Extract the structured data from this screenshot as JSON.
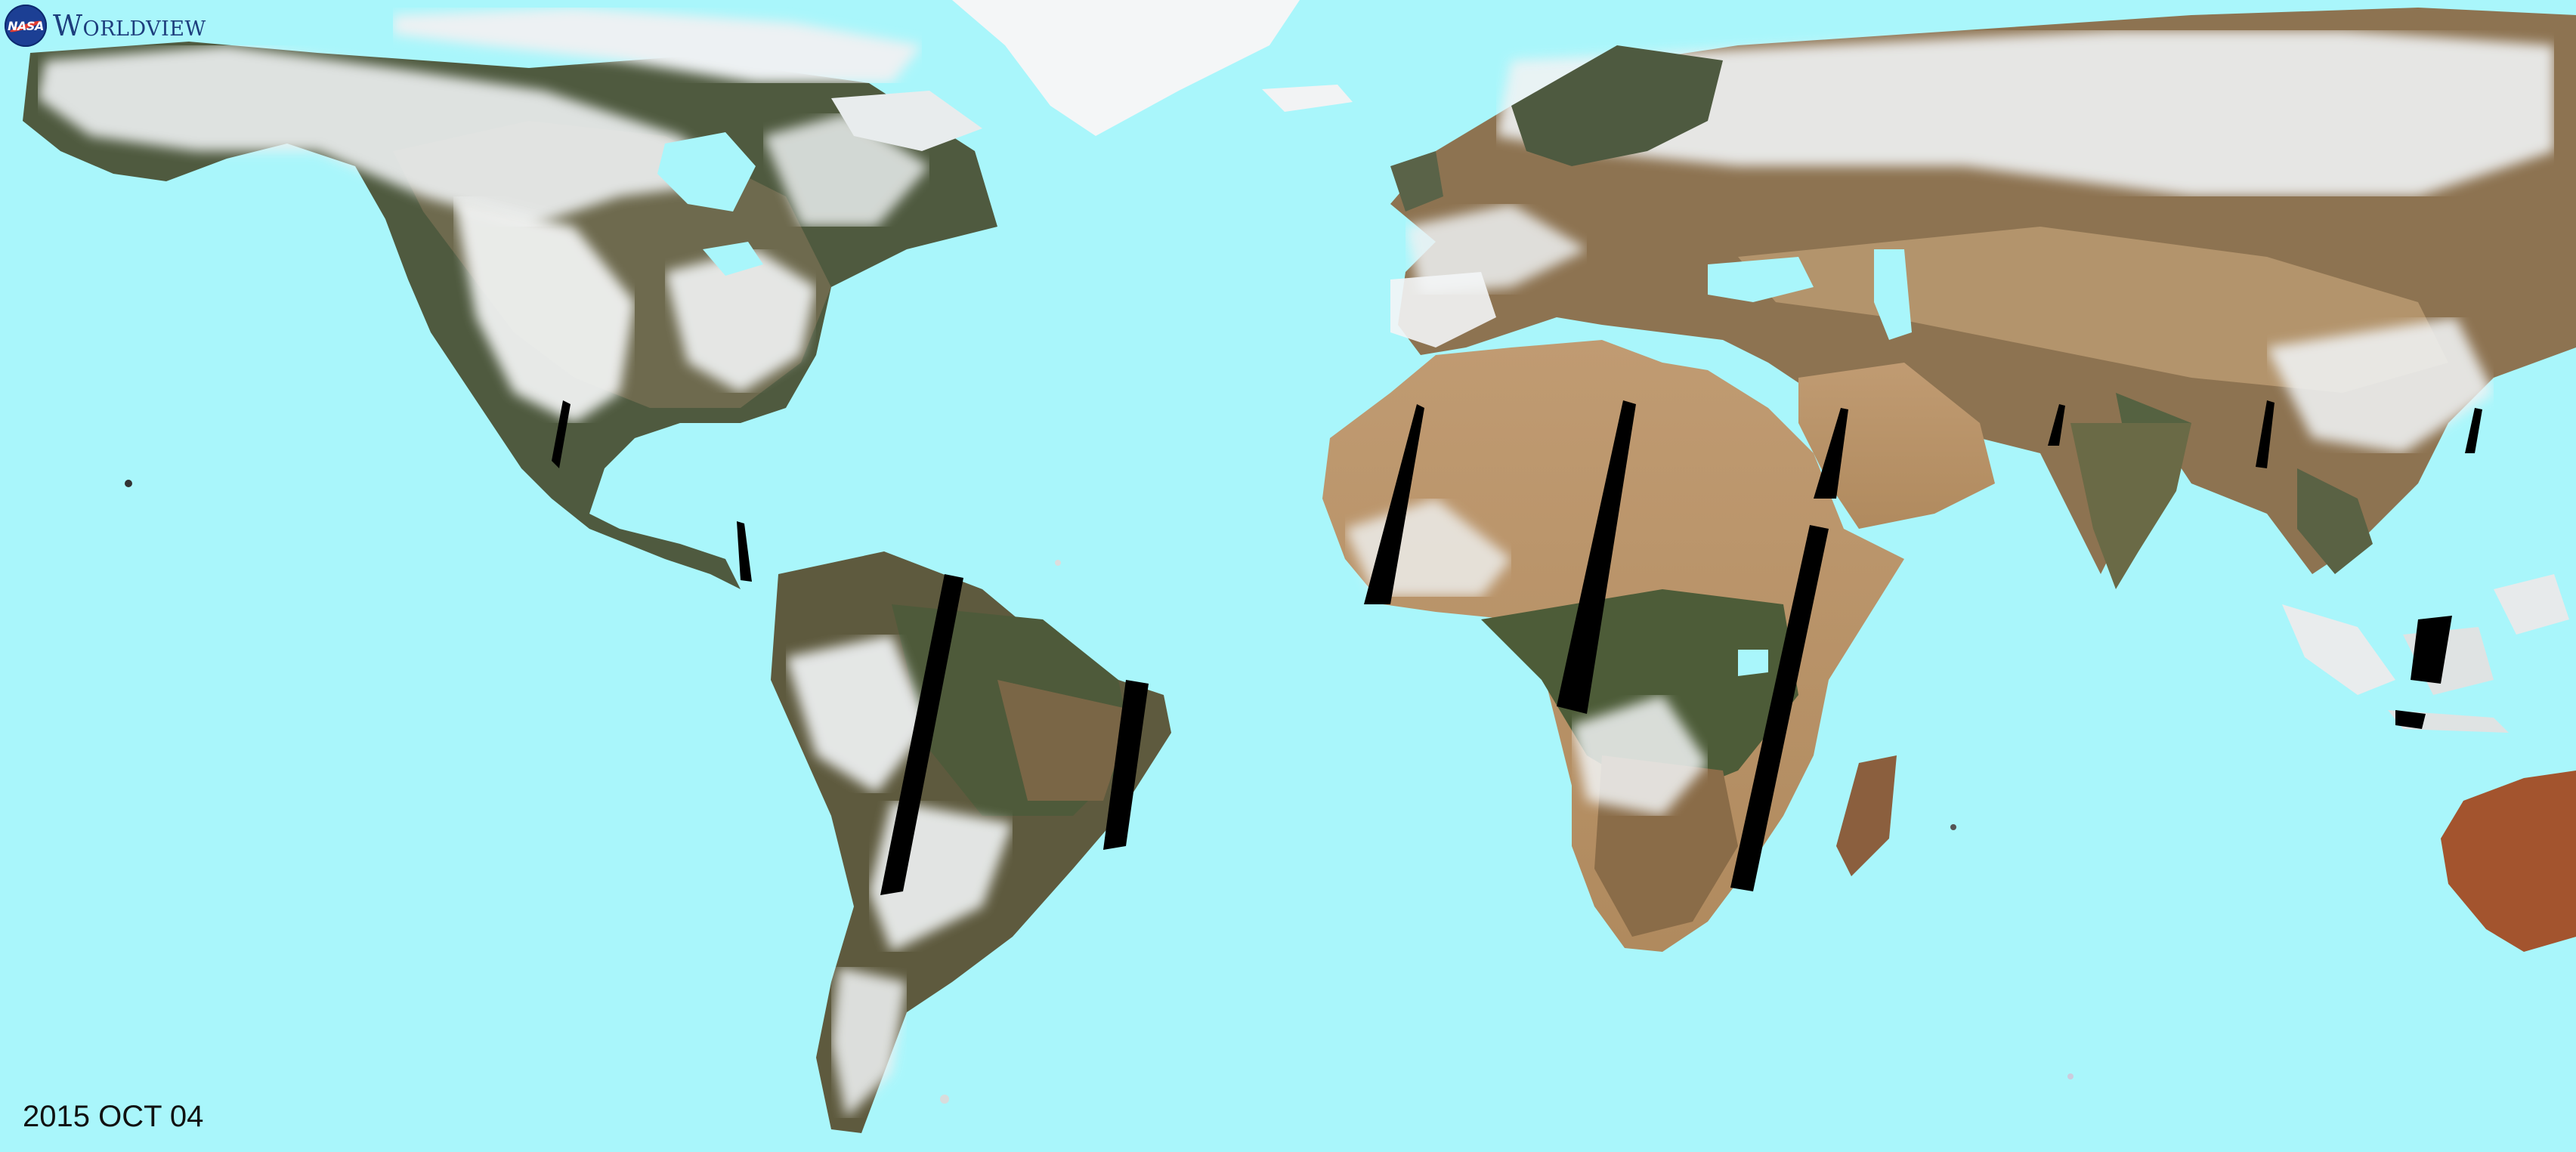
{
  "logo": {
    "agency": "NASA",
    "title": "Worldview",
    "colors": {
      "badge": "#1c3f94",
      "swoosh": "#e03c31",
      "title": "#1d3e7d"
    }
  },
  "map": {
    "projection": "equirectangular",
    "background": "ocean",
    "ocean_color": "#a9f6fb",
    "land_colors": [
      "#8a6a45",
      "#c4a27a",
      "#4d5a3b",
      "#f2f4f4"
    ],
    "swath_gap_color": "#000000"
  },
  "date": "2015 OCT 04"
}
